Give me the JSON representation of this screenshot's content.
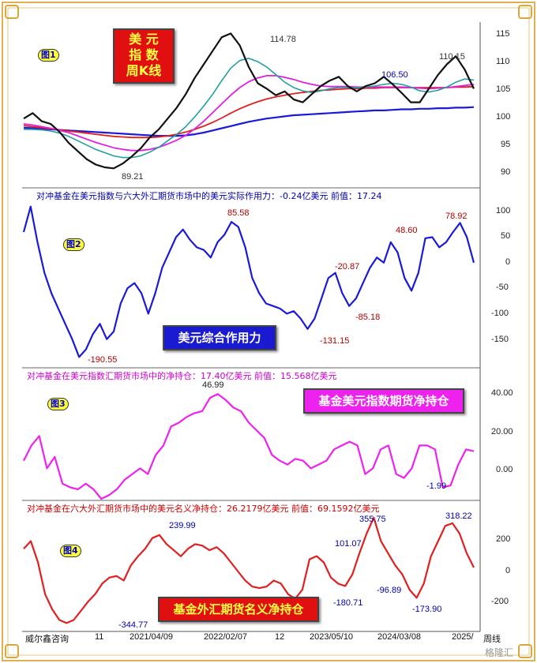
{
  "colors": {
    "frame": "#e0b050",
    "price": "#111111",
    "ma_cyan": "#20a0a0",
    "ma_magenta": "#e020e0",
    "ma_red": "#e02020",
    "ma_blue": "#1a1ad8",
    "p2_line": "#1a1ad8",
    "p3_line": "#ee22ee",
    "p4_line": "#e02020"
  },
  "panel1": {
    "badge": "图1",
    "title_lines": [
      "美  元",
      "指  数",
      "周K线"
    ],
    "labels": {
      "peak": "114.78",
      "low": "89.21",
      "mid": "106.50",
      "recent": "110.15"
    }
  },
  "panel2": {
    "badge": "图2",
    "header": "对冲基金在美元指数与六大外汇期货市场中的美元实际作用力：-0.24亿美元    前值：17.24",
    "title": "美元综合作用力",
    "labels": {
      "low": "-190.55",
      "peak": "85.58",
      "a": "-20.87",
      "b": "-85.18",
      "c": "-131.15",
      "d": "48.60",
      "e": "78.92"
    }
  },
  "panel3": {
    "badge": "图3",
    "header": "对冲基金在美元指数汇期货市场中的净持仓：17.40亿美元    前值：15.568亿美元",
    "title": "基金美元指数期货净持仓",
    "labels": {
      "peak": "46.99",
      "low": "-1.99"
    }
  },
  "panel4": {
    "badge": "图4",
    "header": "对冲基金在六大外汇期货市场中的美元名义净持仓：26.2179亿美元    前值：69.1592亿美元",
    "title": "基金外汇期货名义净持仓",
    "labels": {
      "low": "-344.77",
      "peak1": "239.99",
      "a": "101.07",
      "b": "-180.71",
      "c": "-96.89",
      "d": "355.75",
      "e": "-173.90",
      "f": "318.22"
    }
  },
  "footer": {
    "source": "威尔鑫咨询",
    "x_ticks": [
      "11",
      "2021/04/09",
      "2022/02/07",
      "12",
      "2023/05/10",
      "2024/03/08",
      "2025/"
    ],
    "period": "周线",
    "watermark": "格隆汇"
  },
  "chart_data": [
    {
      "type": "line",
      "name": "panel1",
      "y_ticks": [
        "115",
        "110",
        "105",
        "100",
        "95",
        "90"
      ],
      "ylim": [
        86,
        116
      ],
      "series": [
        {
          "values": [
            98.5,
            99.5,
            98,
            97.5,
            96,
            94,
            92.5,
            91,
            90,
            89.5,
            89.3,
            90.2,
            91.5,
            93,
            95,
            96.5,
            98.5,
            100.5,
            103,
            106,
            108.5,
            111,
            113.5,
            114.2,
            112,
            108,
            105,
            104,
            102.8,
            103.5,
            102,
            101.5,
            103,
            104.5,
            105.5,
            106.2,
            104.5,
            103.5,
            104.5,
            105,
            106.2,
            104.8,
            103.2,
            101.5,
            101.5,
            104,
            106.5,
            108.5,
            110,
            107.5,
            104
          ]
        },
        {
          "values": [
            96.5,
            96.5,
            96.4,
            96.2,
            95.8,
            95.2,
            94.4,
            93.6,
            92.8,
            92.2,
            91.6,
            91.3,
            91.3,
            91.6,
            92.3,
            93.2,
            94.4,
            95.6,
            97,
            98.8,
            100.8,
            103,
            105.5,
            107.8,
            109.2,
            109.6,
            109,
            108,
            106.6,
            105.2,
            104.2,
            103.6,
            103.3,
            103.6,
            104,
            104.2,
            104.2,
            104.2,
            104.3,
            104.5,
            104.8,
            105,
            104.8,
            104.3,
            103.6,
            103.4,
            103.7,
            104.3,
            105.2,
            105.8,
            105.6
          ]
        },
        {
          "values": [
            97.5,
            97.3,
            97,
            96.7,
            96.3,
            95.9,
            95.3,
            94.7,
            94.1,
            93.6,
            93.1,
            92.8,
            92.6,
            92.6,
            92.8,
            93.2,
            93.8,
            94.5,
            95.4,
            96.6,
            98,
            99.6,
            101.2,
            102.8,
            104.2,
            105.3,
            106,
            106.4,
            106.4,
            106.1,
            105.7,
            105.2,
            104.8,
            104.5,
            104.4,
            104.4,
            104.4,
            104.3,
            104.3,
            104.3,
            104.3,
            104.3,
            104.3,
            104.2,
            104.1,
            104,
            104.1,
            104.2,
            104.4,
            104.6,
            104.8
          ]
        },
        {
          "values": [
            97.2,
            97,
            96.8,
            96.6,
            96.4,
            96.2,
            96,
            95.8,
            95.6,
            95.4,
            95.2,
            95.1,
            95,
            95,
            95,
            95.1,
            95.3,
            95.6,
            96,
            96.5,
            97.1,
            97.8,
            98.6,
            99.5,
            100.3,
            101,
            101.6,
            102.1,
            102.5,
            102.8,
            103.1,
            103.3,
            103.5,
            103.7,
            103.8,
            103.9,
            104,
            104,
            104.1,
            104.1,
            104.2,
            104.2,
            104.2,
            104.2,
            104.2,
            104.2,
            104.2,
            104.2,
            104.3,
            104.3,
            104.4
          ]
        },
        {
          "values": [
            96.8,
            96.7,
            96.6,
            96.5,
            96.4,
            96.3,
            96.2,
            96.1,
            96,
            95.9,
            95.8,
            95.7,
            95.6,
            95.5,
            95.4,
            95.3,
            95.3,
            95.3,
            95.4,
            95.6,
            95.9,
            96.3,
            96.7,
            97.1,
            97.5,
            97.9,
            98.2,
            98.5,
            98.7,
            98.9,
            99.1,
            99.2,
            99.3,
            99.4,
            99.5,
            99.6,
            99.7,
            99.8,
            99.9,
            100,
            100,
            100.1,
            100.2,
            100.2,
            100.3,
            100.3,
            100.4,
            100.4,
            100.5,
            100.5,
            100.6
          ]
        }
      ]
    },
    {
      "type": "line",
      "name": "panel2",
      "y_ticks": [
        "100",
        "50",
        "0",
        "-50",
        "-100",
        "-150"
      ],
      "ylim": [
        -200,
        125
      ],
      "values": [
        60,
        110,
        40,
        -20,
        -60,
        -90,
        -120,
        -150,
        -185,
        -170,
        -140,
        -120,
        -150,
        -135,
        -80,
        -50,
        -40,
        -60,
        -100,
        -60,
        -10,
        20,
        50,
        65,
        45,
        30,
        25,
        10,
        40,
        55,
        80,
        70,
        30,
        -30,
        -60,
        -80,
        -85,
        -90,
        -100,
        -95,
        -110,
        -130,
        -110,
        -70,
        -30,
        -20,
        -60,
        -85,
        -70,
        -40,
        -10,
        10,
        0,
        40,
        20,
        -30,
        -55,
        -20,
        48,
        50,
        30,
        40,
        60,
        78,
        50,
        0
      ]
    },
    {
      "type": "line",
      "name": "panel3",
      "y_ticks": [
        "40.00",
        "20.00",
        "0.00"
      ],
      "ylim": [
        -8,
        55
      ],
      "values": [
        12,
        20,
        25,
        8,
        14,
        0,
        -2,
        -3,
        0,
        -3,
        -8,
        -6,
        -3,
        2,
        5,
        8,
        5,
        15,
        20,
        30,
        32,
        35,
        37,
        38,
        45,
        47,
        44,
        40,
        38,
        32,
        28,
        24,
        15,
        12,
        10,
        13,
        12,
        8,
        10,
        12,
        18,
        20,
        22,
        20,
        5,
        8,
        18,
        20,
        5,
        3,
        8,
        20,
        20,
        18,
        -2,
        -1,
        10,
        18,
        17
      ]
    },
    {
      "type": "line",
      "name": "panel4",
      "y_ticks": [
        "200",
        "0",
        "-200"
      ],
      "ylim": [
        -385,
        385
      ],
      "values": [
        150,
        200,
        60,
        -150,
        -250,
        -320,
        -340,
        -320,
        -260,
        -200,
        -150,
        -80,
        -40,
        -30,
        -60,
        40,
        100,
        150,
        220,
        240,
        180,
        140,
        100,
        150,
        180,
        170,
        140,
        160,
        120,
        60,
        0,
        -60,
        -100,
        -110,
        -100,
        -60,
        -80,
        -150,
        -180,
        -120,
        80,
        101,
        60,
        -40,
        -80,
        -96,
        -20,
        120,
        250,
        355,
        200,
        120,
        40,
        -20,
        -120,
        -174,
        -80,
        100,
        200,
        300,
        318,
        250,
        120,
        26
      ]
    }
  ]
}
